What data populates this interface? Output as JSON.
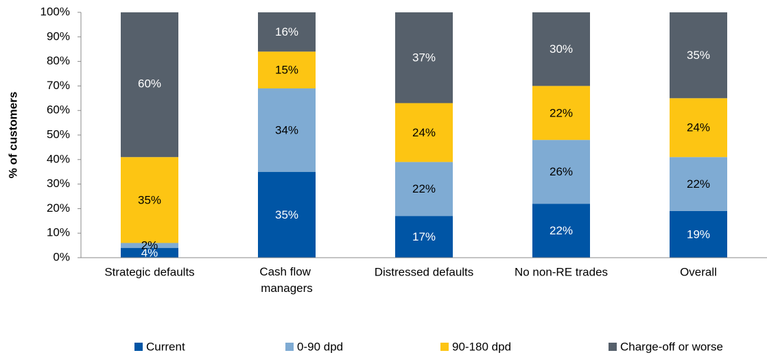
{
  "chart_data": {
    "type": "stacked_bar",
    "y_label": "% of customers",
    "categories": [
      "Strategic defaults",
      "Cash flow managers",
      "Distressed defaults",
      "No non-RE trades",
      "Overall"
    ],
    "series": [
      {
        "name": "Current",
        "color": "#0055a5",
        "values": [
          4,
          35,
          17,
          22,
          19
        ],
        "value_labels": [
          "4%",
          "35%",
          "17%",
          "22%",
          "19%"
        ]
      },
      {
        "name": "0-90 dpd",
        "color": "#7fabd3",
        "values": [
          2,
          34,
          22,
          26,
          22
        ],
        "value_labels": [
          "2%",
          "34%",
          "22%",
          "26%",
          "22%"
        ]
      },
      {
        "name": "90-180 dpd",
        "color": "#fdc513",
        "values": [
          35,
          15,
          24,
          22,
          24
        ],
        "value_labels": [
          "35%",
          "15%",
          "24%",
          "22%",
          "24%"
        ]
      },
      {
        "name": "Charge-off or worse",
        "color": "#56606b",
        "values": [
          60,
          16,
          37,
          30,
          35
        ],
        "value_labels": [
          "60%",
          "16%",
          "37%",
          "30%",
          "35%"
        ]
      }
    ],
    "ylim": [
      0,
      100
    ],
    "yticks": [
      {
        "value": 0,
        "label": "0%"
      },
      {
        "value": 10,
        "label": "10%"
      },
      {
        "value": 20,
        "label": "20%"
      },
      {
        "value": 30,
        "label": "30%"
      },
      {
        "value": 40,
        "label": "40%"
      },
      {
        "value": 50,
        "label": "50%"
      },
      {
        "value": 60,
        "label": "60%"
      },
      {
        "value": 70,
        "label": "70%"
      },
      {
        "value": 80,
        "label": "80%"
      },
      {
        "value": 90,
        "label": "90%"
      },
      {
        "value": 100,
        "label": "100%"
      }
    ],
    "legend": "bottom"
  }
}
